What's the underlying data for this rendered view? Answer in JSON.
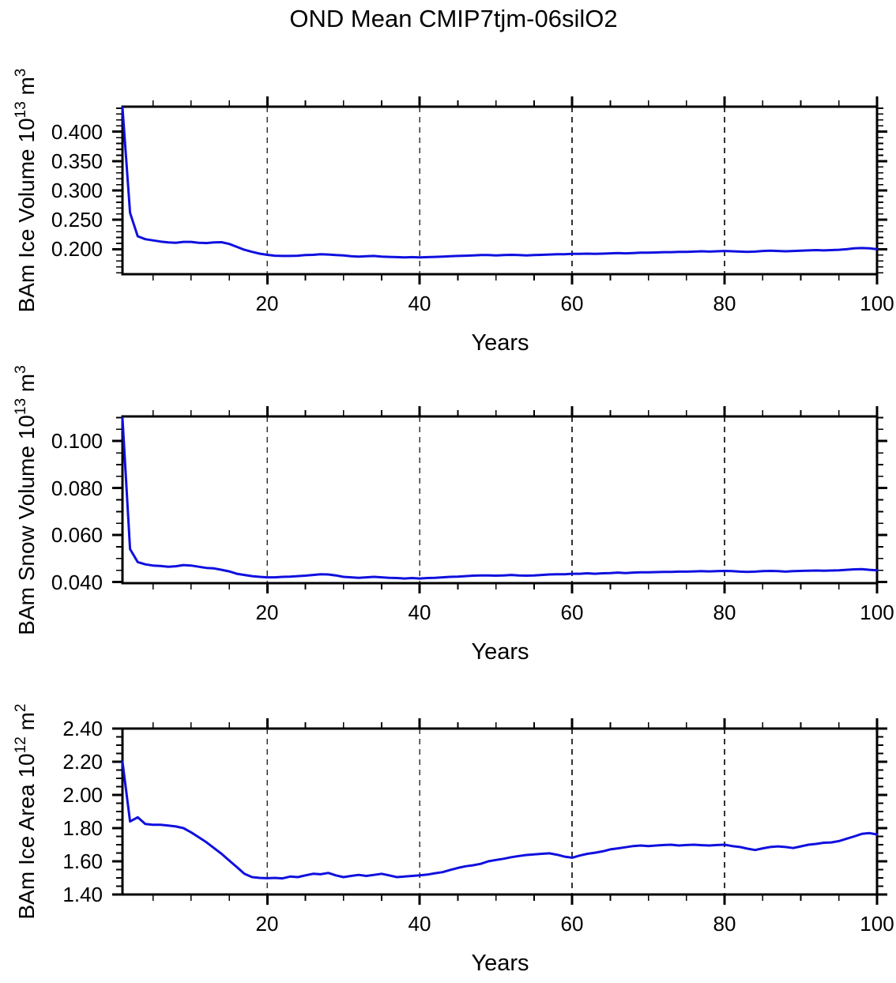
{
  "title": "OND Mean CMIP7tjm-06silO2",
  "chart_data": {
    "type": "line",
    "xlabel": "Years",
    "x_range": [
      1,
      100
    ],
    "x_major_ticks": [
      20,
      40,
      60,
      80,
      100
    ],
    "x_major_labels": [
      "20",
      "40",
      "60",
      "80",
      "100"
    ],
    "x_minor_ticks": [
      5,
      10,
      15,
      25,
      30,
      35,
      45,
      50,
      55,
      65,
      70,
      75,
      85,
      90,
      95
    ],
    "grid_years": [
      20,
      40,
      60,
      80
    ],
    "grid_style": "dashed",
    "line_color": "#0f0fdf",
    "frame_color": "#000000",
    "legend": "none",
    "x": [
      1,
      2,
      3,
      4,
      5,
      6,
      7,
      8,
      9,
      10,
      11,
      12,
      13,
      14,
      15,
      16,
      17,
      18,
      19,
      20,
      21,
      22,
      23,
      24,
      25,
      26,
      27,
      28,
      29,
      30,
      31,
      32,
      33,
      34,
      35,
      36,
      37,
      38,
      39,
      40,
      41,
      42,
      43,
      44,
      45,
      46,
      47,
      48,
      49,
      50,
      51,
      52,
      53,
      54,
      55,
      56,
      57,
      58,
      59,
      60,
      61,
      62,
      63,
      64,
      65,
      66,
      67,
      68,
      69,
      70,
      71,
      72,
      73,
      74,
      75,
      76,
      77,
      78,
      79,
      80,
      81,
      82,
      83,
      84,
      85,
      86,
      87,
      88,
      89,
      90,
      91,
      92,
      93,
      94,
      95,
      96,
      97,
      98,
      99,
      100
    ],
    "panels": [
      {
        "id": "ice-volume",
        "ylabel": "BAm Ice Volume 10¹³ m³",
        "ylabel_parts": [
          {
            "t": "BAm Ice Volume 10"
          },
          {
            "t": "13",
            "sup": true
          },
          {
            "t": " m"
          },
          {
            "t": "3",
            "sup": true
          }
        ],
        "ylim": [
          0.1575,
          0.4425
        ],
        "ytick_labels": [
          "0.400",
          "0.350",
          "0.300",
          "0.250",
          "0.200"
        ],
        "ytick_values": [
          0.4,
          0.35,
          0.3,
          0.25,
          0.2
        ],
        "yminor": [
          0.16,
          0.17,
          0.18,
          0.19,
          0.21,
          0.22,
          0.23,
          0.24,
          0.26,
          0.27,
          0.28,
          0.29,
          0.31,
          0.32,
          0.33,
          0.34,
          0.36,
          0.37,
          0.38,
          0.39,
          0.41,
          0.42,
          0.43,
          0.44
        ],
        "values": [
          0.441,
          0.262,
          0.222,
          0.217,
          0.215,
          0.213,
          0.2115,
          0.211,
          0.2125,
          0.2125,
          0.211,
          0.2105,
          0.2115,
          0.212,
          0.209,
          0.204,
          0.199,
          0.1955,
          0.1925,
          0.1905,
          0.189,
          0.1885,
          0.1885,
          0.189,
          0.19,
          0.1905,
          0.1915,
          0.191,
          0.19,
          0.1895,
          0.188,
          0.1875,
          0.188,
          0.1885,
          0.1875,
          0.187,
          0.1865,
          0.186,
          0.1865,
          0.186,
          0.1865,
          0.187,
          0.1875,
          0.188,
          0.1885,
          0.189,
          0.1895,
          0.19,
          0.19,
          0.1895,
          0.19,
          0.1905,
          0.19,
          0.1895,
          0.19,
          0.1905,
          0.191,
          0.1915,
          0.1915,
          0.192,
          0.192,
          0.1925,
          0.192,
          0.1925,
          0.193,
          0.1935,
          0.193,
          0.1935,
          0.194,
          0.194,
          0.1945,
          0.195,
          0.195,
          0.1955,
          0.1955,
          0.196,
          0.1965,
          0.196,
          0.1965,
          0.197,
          0.1965,
          0.196,
          0.1955,
          0.196,
          0.197,
          0.1975,
          0.197,
          0.1965,
          0.197,
          0.1975,
          0.198,
          0.1985,
          0.198,
          0.1985,
          0.199,
          0.2,
          0.2015,
          0.202,
          0.2015,
          0.2
        ]
      },
      {
        "id": "snow-volume",
        "ylabel": "BAm Snow Volume 10¹³ m³",
        "ylabel_parts": [
          {
            "t": "BAm Snow Volume 10"
          },
          {
            "t": "13",
            "sup": true
          },
          {
            "t": " m"
          },
          {
            "t": "3",
            "sup": true
          }
        ],
        "ylim": [
          0.0395,
          0.1105
        ],
        "ytick_labels": [
          "0.100",
          "0.080",
          "0.060",
          "0.040"
        ],
        "ytick_values": [
          0.1,
          0.08,
          0.06,
          0.04
        ],
        "yminor": [
          0.045,
          0.05,
          0.055,
          0.065,
          0.07,
          0.075,
          0.085,
          0.09,
          0.095,
          0.105,
          0.11
        ],
        "values": [
          0.1098,
          0.054,
          0.0485,
          0.0475,
          0.047,
          0.0468,
          0.0465,
          0.0467,
          0.0472,
          0.047,
          0.0465,
          0.046,
          0.0458,
          0.0452,
          0.0445,
          0.0435,
          0.043,
          0.0425,
          0.0422,
          0.042,
          0.042,
          0.0422,
          0.0423,
          0.0425,
          0.0427,
          0.043,
          0.0433,
          0.0432,
          0.0428,
          0.0422,
          0.042,
          0.0418,
          0.042,
          0.0422,
          0.042,
          0.0418,
          0.0417,
          0.0415,
          0.0417,
          0.0415,
          0.0417,
          0.0418,
          0.042,
          0.0422,
          0.0423,
          0.0425,
          0.0427,
          0.0428,
          0.0428,
          0.0427,
          0.0428,
          0.043,
          0.0428,
          0.0427,
          0.0428,
          0.043,
          0.0432,
          0.0433,
          0.0433,
          0.0435,
          0.0435,
          0.0437,
          0.0435,
          0.0437,
          0.0438,
          0.044,
          0.0438,
          0.044,
          0.0441,
          0.0441,
          0.0442,
          0.0443,
          0.0443,
          0.0444,
          0.0444,
          0.0445,
          0.0446,
          0.0445,
          0.0446,
          0.0447,
          0.0446,
          0.0444,
          0.0443,
          0.0444,
          0.0446,
          0.0447,
          0.0446,
          0.0444,
          0.0446,
          0.0447,
          0.0448,
          0.0449,
          0.0448,
          0.0449,
          0.045,
          0.0452,
          0.0454,
          0.0455,
          0.0452,
          0.045
        ]
      },
      {
        "id": "ice-area",
        "ylabel": "BAm Ice Area 10¹² m²",
        "ylabel_parts": [
          {
            "t": "BAm Ice Area 10"
          },
          {
            "t": "12",
            "sup": true
          },
          {
            "t": " m"
          },
          {
            "t": "2",
            "sup": true
          }
        ],
        "ylim": [
          1.4,
          2.4
        ],
        "ytick_labels": [
          "2.40",
          "2.20",
          "2.00",
          "1.80",
          "1.60",
          "1.40"
        ],
        "ytick_values": [
          2.4,
          2.2,
          2.0,
          1.8,
          1.6,
          1.4
        ],
        "yminor": [
          1.45,
          1.5,
          1.55,
          1.65,
          1.7,
          1.75,
          1.85,
          1.9,
          1.95,
          2.05,
          2.1,
          2.15,
          2.25,
          2.3,
          2.35
        ],
        "values": [
          2.2,
          1.84,
          1.865,
          1.825,
          1.82,
          1.82,
          1.815,
          1.81,
          1.8,
          1.775,
          1.745,
          1.715,
          1.68,
          1.645,
          1.605,
          1.565,
          1.525,
          1.505,
          1.5,
          1.498,
          1.5,
          1.497,
          1.508,
          1.505,
          1.515,
          1.525,
          1.522,
          1.53,
          1.515,
          1.505,
          1.512,
          1.518,
          1.512,
          1.518,
          1.525,
          1.515,
          1.505,
          1.508,
          1.512,
          1.515,
          1.52,
          1.528,
          1.535,
          1.548,
          1.56,
          1.57,
          1.576,
          1.585,
          1.6,
          1.608,
          1.615,
          1.625,
          1.632,
          1.638,
          1.642,
          1.645,
          1.648,
          1.64,
          1.628,
          1.622,
          1.635,
          1.645,
          1.652,
          1.66,
          1.672,
          1.678,
          1.685,
          1.692,
          1.695,
          1.692,
          1.695,
          1.698,
          1.7,
          1.695,
          1.698,
          1.7,
          1.697,
          1.695,
          1.698,
          1.7,
          1.692,
          1.686,
          1.676,
          1.668,
          1.678,
          1.686,
          1.69,
          1.686,
          1.68,
          1.69,
          1.7,
          1.705,
          1.712,
          1.714,
          1.722,
          1.736,
          1.75,
          1.765,
          1.77,
          1.762
        ]
      }
    ]
  }
}
